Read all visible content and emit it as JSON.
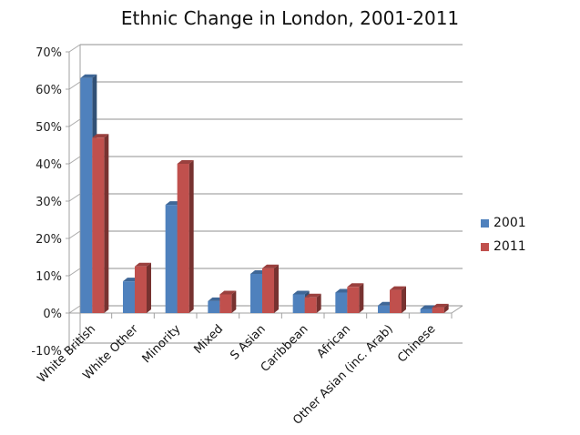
{
  "chart_data": {
    "type": "bar",
    "style": "3d-clustered-column",
    "title": "Ethnic Change in London, 2001-2011",
    "xlabel": "",
    "ylabel": "",
    "ylim": [
      -0.1,
      0.7
    ],
    "yticks": [
      "-10%",
      "0%",
      "10%",
      "20%",
      "30%",
      "40%",
      "50%",
      "60%",
      "70%"
    ],
    "grid": true,
    "legend_position": "right",
    "categories": [
      "White British",
      "White Other",
      "Minority",
      "Mixed",
      "S Asian",
      "Caribbean",
      "African",
      "Other Asian (inc. Arab)",
      "Chinese"
    ],
    "series": [
      {
        "name": "2001",
        "color": "#4F81BD",
        "values": [
          0.63,
          0.085,
          0.29,
          0.032,
          0.105,
          0.05,
          0.055,
          0.02,
          0.011
        ]
      },
      {
        "name": "2011",
        "color": "#C0504D",
        "values": [
          0.47,
          0.125,
          0.4,
          0.05,
          0.12,
          0.042,
          0.07,
          0.062,
          0.015
        ]
      }
    ]
  }
}
